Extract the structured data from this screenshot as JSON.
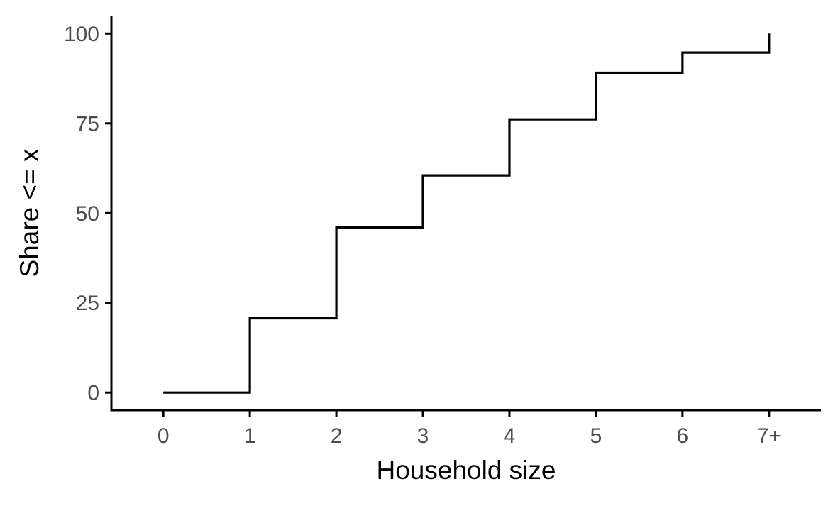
{
  "chart_data": {
    "type": "line",
    "subtype": "step",
    "title": "",
    "xlabel": "Household size",
    "ylabel": "Share <= x",
    "x_categories": [
      "0",
      "1",
      "2",
      "3",
      "4",
      "5",
      "6",
      "7+"
    ],
    "series": [
      {
        "x": [
          0,
          1,
          2,
          3,
          4,
          5,
          6,
          7
        ],
        "y": [
          0,
          20.7,
          46.0,
          60.5,
          76.1,
          89.1,
          94.7,
          100
        ]
      }
    ],
    "yticks": [
      0,
      25,
      50,
      75,
      100
    ],
    "ytick_labels": [
      "0",
      "25",
      "50",
      "75",
      "100"
    ],
    "ylim": [
      -4.9,
      105
    ],
    "xlim": [
      -0.6,
      7.6
    ],
    "grid": false,
    "legend": "none",
    "colors": {
      "line": "#000000",
      "axis": "#000000",
      "tick_text": "#4d4d4d",
      "background": "#ffffff"
    }
  }
}
